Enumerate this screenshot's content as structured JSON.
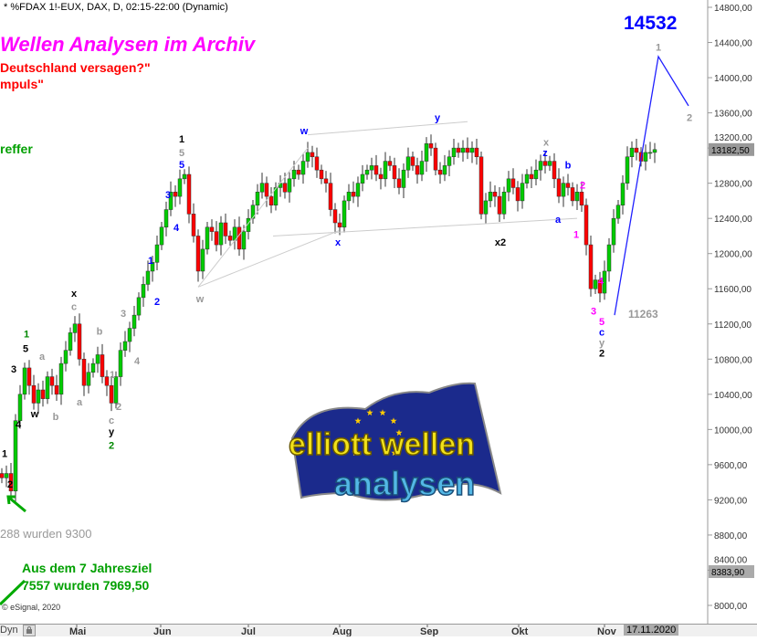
{
  "header": {
    "title": "* %FDAX 1!-EUX, DAX, D, 02:15-22:00 (Dynamic)"
  },
  "texts": {
    "headline": "Wellen Analysen im Archiv",
    "line2": "Deutschland versagen?\"",
    "line3": "mpuls\"",
    "line4": "reffer",
    "line5": "288 wurden 9300",
    "line6": "Aus dem 7 Jahresziel",
    "line7": "7557 wurden 7969,50",
    "copyright": "© eSignal, 2020",
    "target": "14532",
    "level": "11263"
  },
  "logo": {
    "line1": "elliott wellen",
    "line2": "analysen"
  },
  "footer": {
    "dyn": "Dyn",
    "date": "17.11.2020"
  },
  "colors": {
    "up": "#00cc00",
    "down": "#ff0000",
    "target": "#0000ff",
    "headline": "#ff00ff"
  },
  "chart_data": {
    "type": "candlestick",
    "ylim": [
      8000,
      14800
    ],
    "yticks": [
      8000,
      8400,
      8800,
      9200,
      9600,
      10000,
      10400,
      10800,
      11200,
      11600,
      12000,
      12400,
      12800,
      13200,
      13600,
      14000,
      14400,
      14800
    ],
    "ytick_labels": [
      "8000,00",
      "8400,00",
      "8800,00",
      "9200,00",
      "9600,00",
      "10000,00",
      "10400,00",
      "10800,00",
      "11200,00",
      "11600,00",
      "12000,00",
      "12400,00",
      "12800,00",
      "13200,00",
      "13600,00",
      "14000,00",
      "14400,00",
      "14800,00"
    ],
    "x_months": [
      {
        "label": "Mai",
        "i": 16.4
      },
      {
        "label": "Jun",
        "i": 34.8
      },
      {
        "label": "Jul",
        "i": 54
      },
      {
        "label": "Aug",
        "i": 74
      },
      {
        "label": "Sep",
        "i": 93.2
      },
      {
        "label": "Okt",
        "i": 113.2
      },
      {
        "label": "Nov",
        "i": 132
      }
    ],
    "last_price": {
      "label": "13182,50",
      "value": 13182.5
    },
    "marker_price": {
      "label": "8383,90",
      "value": 8383.9
    },
    "closes": [
      9450,
      9500,
      9300,
      10100,
      10400,
      10700,
      10500,
      10300,
      10450,
      10350,
      10600,
      10500,
      10400,
      10750,
      10900,
      11100,
      11200,
      10800,
      10500,
      10650,
      10750,
      10850,
      10600,
      10500,
      10300,
      10600,
      10900,
      11000,
      11150,
      11300,
      11500,
      11650,
      11800,
      11900,
      12100,
      12300,
      12500,
      12700,
      12650,
      12850,
      12900,
      12450,
      12200,
      11800,
      12050,
      12300,
      12250,
      12100,
      12350,
      12200,
      12150,
      12300,
      12050,
      12250,
      12400,
      12550,
      12700,
      12800,
      12650,
      12550,
      12750,
      12800,
      12700,
      12850,
      12950,
      12900,
      13050,
      13150,
      13100,
      12950,
      12850,
      12800,
      12500,
      12350,
      12300,
      12600,
      12700,
      12650,
      12800,
      12900,
      12950,
      13000,
      12900,
      12850,
      13050,
      13000,
      12850,
      12750,
      12950,
      13100,
      13000,
      12900,
      13050,
      13250,
      13200,
      12950,
      12900,
      13000,
      13100,
      13200,
      13150,
      13200,
      13150,
      13200,
      13100,
      12450,
      12600,
      12700,
      12650,
      12450,
      12700,
      12850,
      12750,
      12600,
      12800,
      12900,
      12850,
      12950,
      13050,
      13000,
      13050,
      12850,
      12650,
      12800,
      12750,
      12600,
      12700,
      12550,
      12100,
      11600,
      11700,
      11550,
      11800,
      12100,
      12400,
      12550,
      12800,
      13100,
      13200,
      13150,
      13050,
      13150,
      13150,
      13182.5
    ],
    "wave_labels": [
      {
        "t": "1",
        "i": 39.4,
        "p": 13305,
        "c": "#000"
      },
      {
        "t": "5",
        "i": 39.4,
        "p": 13150,
        "c": "#999"
      },
      {
        "t": "5",
        "i": 39.4,
        "p": 13015,
        "c": "#0000ff"
      },
      {
        "t": "3",
        "i": 36.4,
        "p": 12672,
        "c": "#0000ff"
      },
      {
        "t": "4",
        "i": 38.2,
        "p": 12300,
        "c": "#0000ff"
      },
      {
        "t": "1",
        "i": 32.6,
        "p": 11925,
        "c": "#0000ff"
      },
      {
        "t": "2",
        "i": 34,
        "p": 11458,
        "c": "#0000ff"
      },
      {
        "t": "3",
        "i": 26.6,
        "p": 11323,
        "c": "#999"
      },
      {
        "t": "4",
        "i": 29.6,
        "p": 10783,
        "c": "#999"
      },
      {
        "t": "1",
        "i": 24.2,
        "p": 10627,
        "c": "#999"
      },
      {
        "t": "2",
        "i": 25.6,
        "p": 10264,
        "c": "#999"
      },
      {
        "t": "c",
        "i": 24,
        "p": 10108,
        "c": "#999"
      },
      {
        "t": "y",
        "i": 24,
        "p": 9990,
        "c": "#000"
      },
      {
        "t": "2",
        "i": 24,
        "p": 9820,
        "c": "#008800"
      },
      {
        "t": "x",
        "i": 15.8,
        "p": 11550,
        "c": "#000"
      },
      {
        "t": "c",
        "i": 15.8,
        "p": 11400,
        "c": "#999"
      },
      {
        "t": "b",
        "i": 21.4,
        "p": 11120,
        "c": "#999"
      },
      {
        "t": "a",
        "i": 17,
        "p": 10315,
        "c": "#999"
      },
      {
        "t": "a",
        "i": 8.8,
        "p": 10835,
        "c": "#999"
      },
      {
        "t": "b",
        "i": 11.8,
        "p": 10150,
        "c": "#999"
      },
      {
        "t": "w",
        "i": 7.2,
        "p": 10180,
        "c": "#000"
      },
      {
        "t": "1",
        "i": 5.4,
        "p": 11090,
        "c": "#008800"
      },
      {
        "t": "5",
        "i": 5.2,
        "p": 10920,
        "c": "#000"
      },
      {
        "t": "3",
        "i": 2.6,
        "p": 10690,
        "c": "#000"
      },
      {
        "t": "4",
        "i": 3.6,
        "p": 10060,
        "c": "#000"
      },
      {
        "t": "1",
        "i": 0.6,
        "p": 9730,
        "c": "#000"
      },
      {
        "t": "2",
        "i": 1.8,
        "p": 9380,
        "c": "#000"
      },
      {
        "t": "w",
        "i": 43.4,
        "p": 11490,
        "c": "#999"
      },
      {
        "t": "w",
        "i": 66.2,
        "p": 13400,
        "c": "#0000ff"
      },
      {
        "t": "x",
        "i": 73.6,
        "p": 12130,
        "c": "#0000ff"
      },
      {
        "t": "y",
        "i": 95.4,
        "p": 13550,
        "c": "#0000ff"
      },
      {
        "t": "x",
        "i": 119.2,
        "p": 13270,
        "c": "#999"
      },
      {
        "t": "z",
        "i": 119,
        "p": 13160,
        "c": "#0000ff"
      },
      {
        "t": "b",
        "i": 124,
        "p": 13010,
        "c": "#0000ff"
      },
      {
        "t": "a",
        "i": 121.8,
        "p": 12390,
        "c": "#0000ff"
      },
      {
        "t": "x2",
        "i": 109.2,
        "p": 12130,
        "c": "#000"
      },
      {
        "t": "2",
        "i": 127.2,
        "p": 12780,
        "c": "#ff00ff"
      },
      {
        "t": "1",
        "i": 125.8,
        "p": 12220,
        "c": "#ff00ff"
      },
      {
        "t": "3",
        "i": 129.6,
        "p": 11350,
        "c": "#ff00ff"
      },
      {
        "t": "4",
        "i": 131.2,
        "p": 11690,
        "c": "#ff00ff"
      },
      {
        "t": "5",
        "i": 131.4,
        "p": 11230,
        "c": "#ff00ff"
      },
      {
        "t": "c",
        "i": 131.4,
        "p": 11130,
        "c": "#0000ff"
      },
      {
        "t": "y",
        "i": 131.4,
        "p": 11040,
        "c": "#999"
      },
      {
        "t": "2",
        "i": 131.4,
        "p": 10910,
        "c": "#000"
      },
      {
        "t": "1",
        "i": 143.8,
        "p": 14350,
        "c": "#999"
      },
      {
        "t": "2",
        "i": 150.6,
        "p": 13550,
        "c": "#999"
      }
    ],
    "projection": [
      {
        "i": 134.2,
        "p": 11300
      },
      {
        "i": 143.8,
        "p": 14240
      },
      {
        "i": 150.4,
        "p": 13680
      }
    ],
    "trendlines": [
      [
        {
          "i": 43,
          "p": 11620
        },
        {
          "i": 67,
          "p": 13200
        }
      ],
      [
        {
          "i": 59.4,
          "p": 12200
        },
        {
          "i": 126,
          "p": 12400
        }
      ],
      [
        {
          "i": 67,
          "p": 13350
        },
        {
          "i": 102,
          "p": 13500
        }
      ],
      [
        {
          "i": 43,
          "p": 11620
        },
        {
          "i": 73.8,
          "p": 12260
        }
      ]
    ]
  }
}
